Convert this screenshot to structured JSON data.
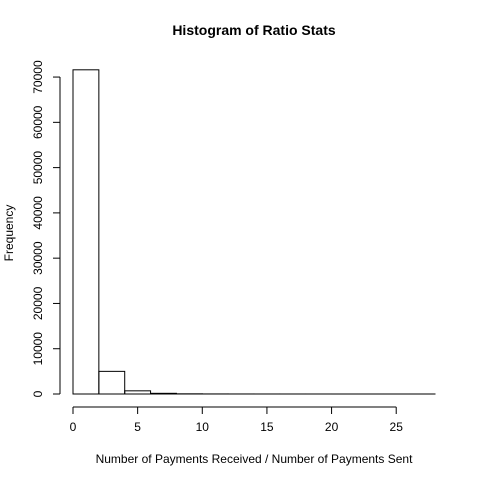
{
  "chart_data": {
    "type": "bar",
    "title": "Histogram of Ratio Stats",
    "xlabel": "Number of Payments Received / Number of Payments Sent",
    "ylabel": "Frequency",
    "xlim": [
      0,
      28
    ],
    "ylim": [
      0,
      72000
    ],
    "x_ticks": [
      0,
      5,
      10,
      15,
      20,
      25
    ],
    "y_ticks": [
      0,
      10000,
      20000,
      30000,
      40000,
      50000,
      60000,
      70000
    ],
    "bins": [
      {
        "x0": 0,
        "x1": 2,
        "count": 71600
      },
      {
        "x0": 2,
        "x1": 4,
        "count": 5000
      },
      {
        "x0": 4,
        "x1": 6,
        "count": 700
      },
      {
        "x0": 6,
        "x1": 8,
        "count": 150
      },
      {
        "x0": 8,
        "x1": 10,
        "count": 40
      },
      {
        "x0": 10,
        "x1": 12,
        "count": 15
      },
      {
        "x0": 12,
        "x1": 14,
        "count": 8
      },
      {
        "x0": 14,
        "x1": 16,
        "count": 5
      },
      {
        "x0": 16,
        "x1": 18,
        "count": 3
      },
      {
        "x0": 18,
        "x1": 20,
        "count": 2
      },
      {
        "x0": 20,
        "x1": 22,
        "count": 1
      },
      {
        "x0": 22,
        "x1": 24,
        "count": 1
      },
      {
        "x0": 24,
        "x1": 26,
        "count": 1
      },
      {
        "x0": 26,
        "x1": 28,
        "count": 1
      }
    ],
    "grid": false,
    "legend": "none"
  }
}
